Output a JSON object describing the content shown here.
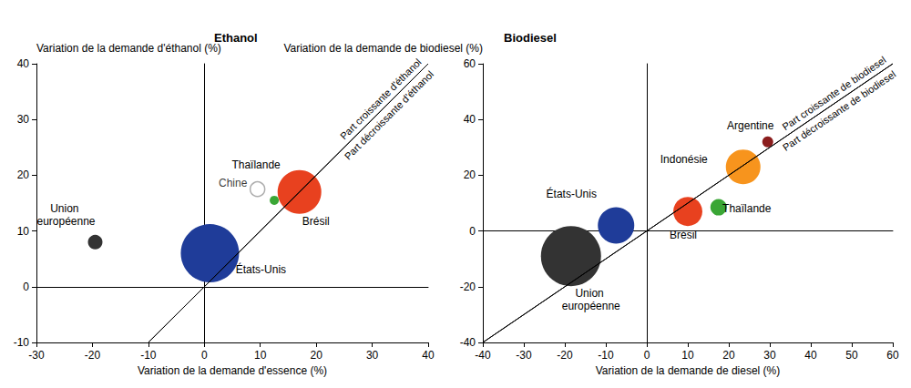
{
  "chart_data": [
    {
      "type": "scatter",
      "title": "Ethanol",
      "x_label": "Variation de la demande d'essence (%)",
      "y_label": "Variation de la demande d'éthanol (%)",
      "xlim": [
        -30,
        40
      ],
      "xticks": [
        -30,
        -20,
        -10,
        0,
        10,
        20,
        30,
        40
      ],
      "ylim": [
        -10,
        40
      ],
      "yticks": [
        -10,
        0,
        10,
        20,
        30,
        40
      ],
      "grid": false,
      "annotations": [
        {
          "text": "Part croissante d'éthanol",
          "side": "above"
        },
        {
          "text": "Part décroissante d'éthanol",
          "side": "below"
        }
      ],
      "series": [
        {
          "name": "Union européenne",
          "color": "#333333",
          "x": [
            -19.5
          ],
          "values": [
            8
          ],
          "sizes": [
            64
          ]
        },
        {
          "name": "États-Unis",
          "color": "#1f3c99",
          "x": [
            1
          ],
          "values": [
            6
          ],
          "sizes": [
            1024
          ]
        },
        {
          "name": "Chine",
          "color": "#999999",
          "marker": "hollow",
          "x": [
            9.5
          ],
          "values": [
            17.5
          ],
          "sizes": [
            64
          ]
        },
        {
          "name": "Thaïlande",
          "color": "#3aa635",
          "x": [
            12.5
          ],
          "values": [
            15.5
          ],
          "sizes": [
            25
          ]
        },
        {
          "name": "Brésil",
          "color": "#e8411f",
          "x": [
            17
          ],
          "values": [
            17
          ],
          "sizes": [
            576
          ]
        }
      ]
    },
    {
      "type": "scatter",
      "title": "Biodiesel",
      "x_label": "Variation de la demande de diesel (%)",
      "y_label": "Variation de la demande de biodiesel (%)",
      "xlim": [
        -40,
        60
      ],
      "xticks": [
        -40,
        -30,
        -20,
        -10,
        0,
        10,
        20,
        30,
        40,
        50,
        60
      ],
      "ylim": [
        -40,
        60
      ],
      "yticks": [
        -40,
        -20,
        0,
        20,
        40,
        60
      ],
      "grid": false,
      "annotations": [
        {
          "text": "Part croissante de biodiesel",
          "side": "above"
        },
        {
          "text": "Part décroissante de biodiesel",
          "side": "below"
        }
      ],
      "series": [
        {
          "name": "Argentine",
          "color": "#8b1d1d",
          "x": [
            29.5
          ],
          "values": [
            32
          ],
          "sizes": [
            36
          ]
        },
        {
          "name": "Indonésie",
          "color": "#f7941d",
          "x": [
            23.5
          ],
          "values": [
            23
          ],
          "sizes": [
            361
          ]
        },
        {
          "name": "Thaïlande",
          "color": "#3aa635",
          "x": [
            17.5
          ],
          "values": [
            8.5
          ],
          "sizes": [
            81
          ]
        },
        {
          "name": "Brésil",
          "color": "#e8411f",
          "x": [
            10
          ],
          "values": [
            7
          ],
          "sizes": [
            256
          ]
        },
        {
          "name": "États-Unis",
          "color": "#1f3c99",
          "x": [
            -7.5
          ],
          "values": [
            2
          ],
          "sizes": [
            400
          ]
        },
        {
          "name": "Union européenne",
          "color": "#333333",
          "x": [
            -18.5
          ],
          "values": [
            -9
          ],
          "sizes": [
            1089
          ]
        }
      ]
    }
  ]
}
